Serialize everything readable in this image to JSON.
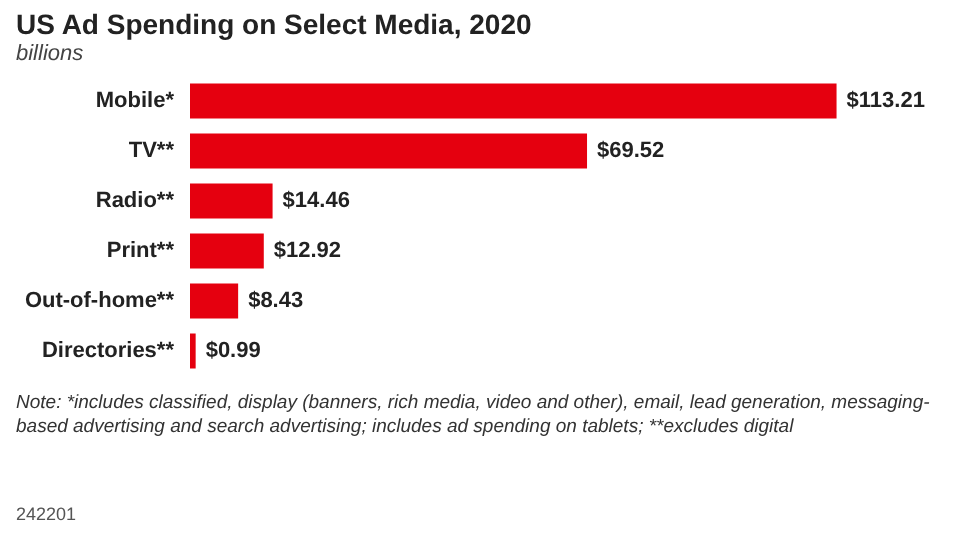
{
  "chart_data": {
    "type": "bar",
    "orientation": "horizontal",
    "tick_labels": "y",
    "title": "US Ad Spending on Select Media, 2020",
    "subtitle": "billions",
    "categories": [
      "Mobile*",
      "TV**",
      "Radio**",
      "Print**",
      "Out-of-home**",
      "Directories**"
    ],
    "values": [
      113.21,
      69.52,
      14.46,
      12.92,
      8.43,
      0.99
    ],
    "value_labels": [
      "$113.21",
      "$69.52",
      "$14.46",
      "$12.92",
      "$8.43",
      "$0.99"
    ],
    "color": "#e5000f",
    "annotations": [
      "Note: *includes classified, display (banners, rich media, video and other), email, lead generation, messaging-based advertising and search advertising; includes ad spending on tablets; **excludes digital",
      "242201"
    ]
  }
}
